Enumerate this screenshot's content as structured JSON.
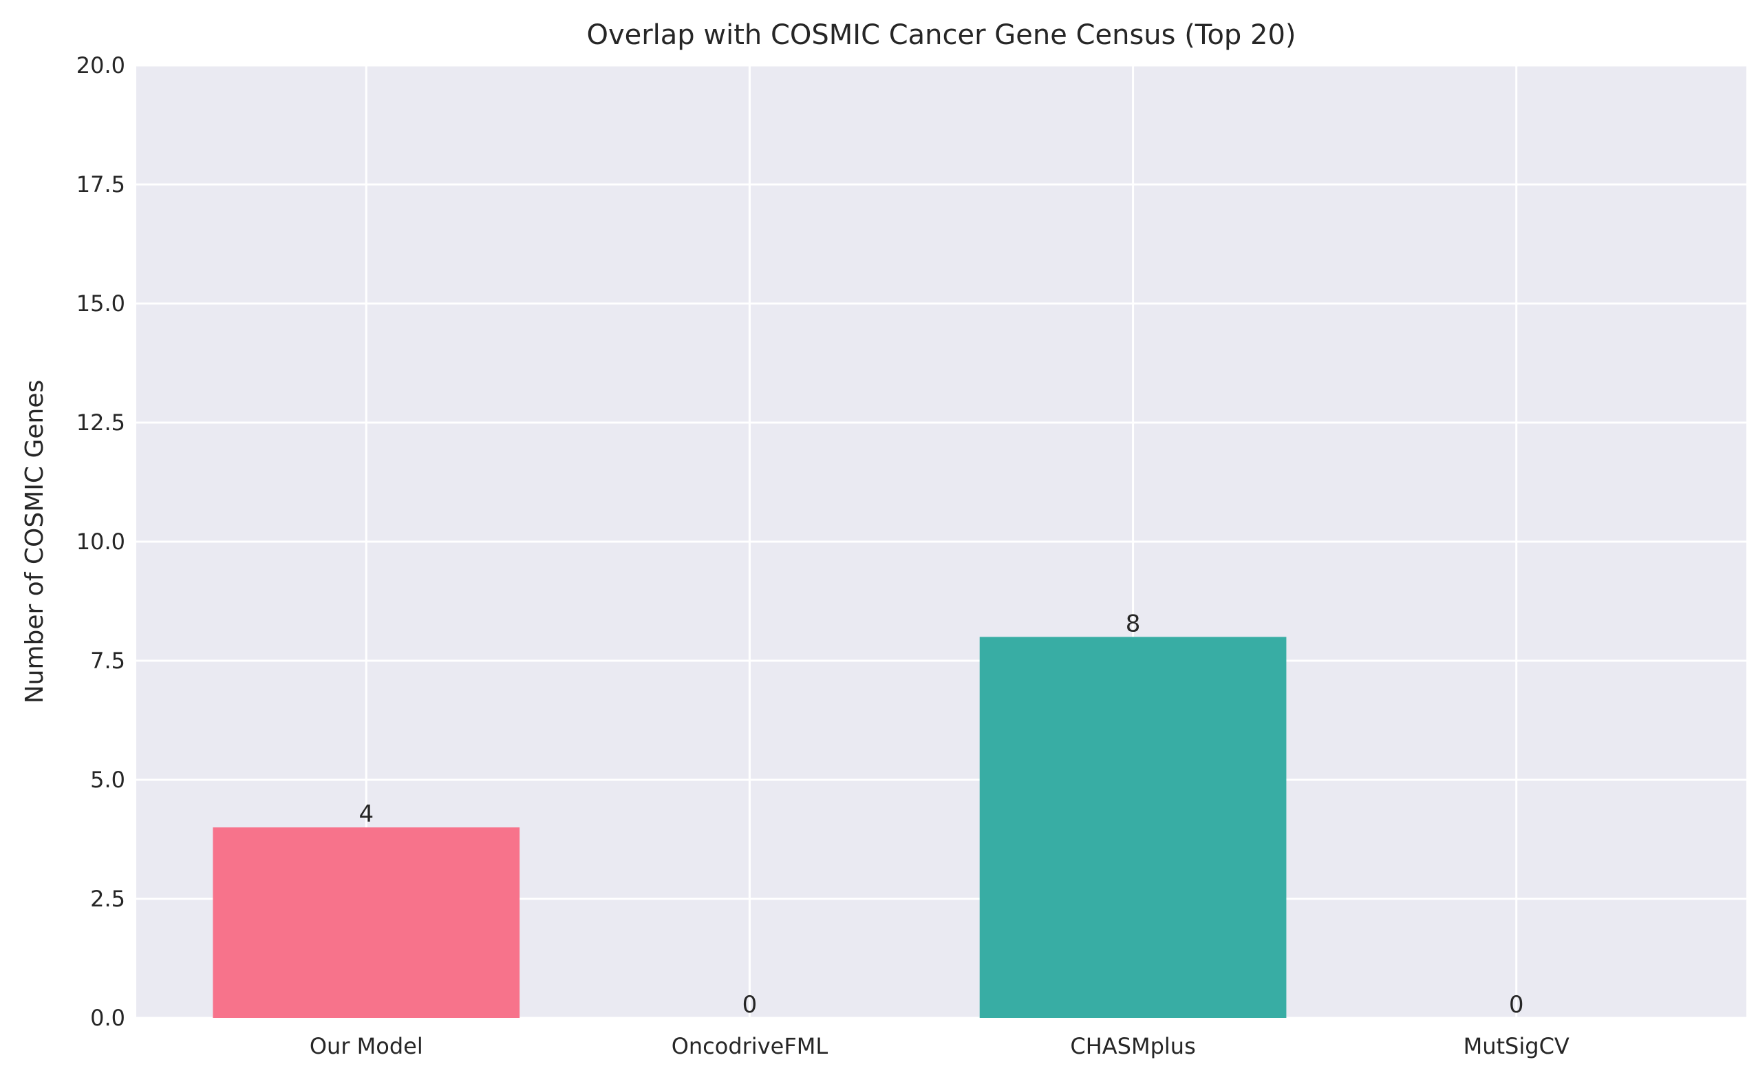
{
  "chart_data": {
    "type": "bar",
    "title": "Overlap with COSMIC Cancer Gene Census (Top 20)",
    "xlabel": "",
    "ylabel": "Number of COSMIC Genes",
    "categories": [
      "Our Model",
      "OncodriveFML",
      "CHASMplus",
      "MutSigCV"
    ],
    "values": [
      4,
      0,
      8,
      0
    ],
    "value_labels": [
      "4",
      "0",
      "8",
      "0"
    ],
    "ylim": [
      0,
      20
    ],
    "yticks": [
      0,
      2.5,
      5,
      7.5,
      10,
      12.5,
      15,
      17.5,
      20
    ],
    "ytick_labels": [
      "0.0",
      "2.5",
      "5.0",
      "7.5",
      "10.0",
      "12.5",
      "15.0",
      "17.5",
      "20.0"
    ],
    "grid": true,
    "background": "#eaeaf2",
    "bar_colors": [
      "#f7738b",
      "#d88f33",
      "#38ada4",
      "#a48cf4"
    ]
  }
}
